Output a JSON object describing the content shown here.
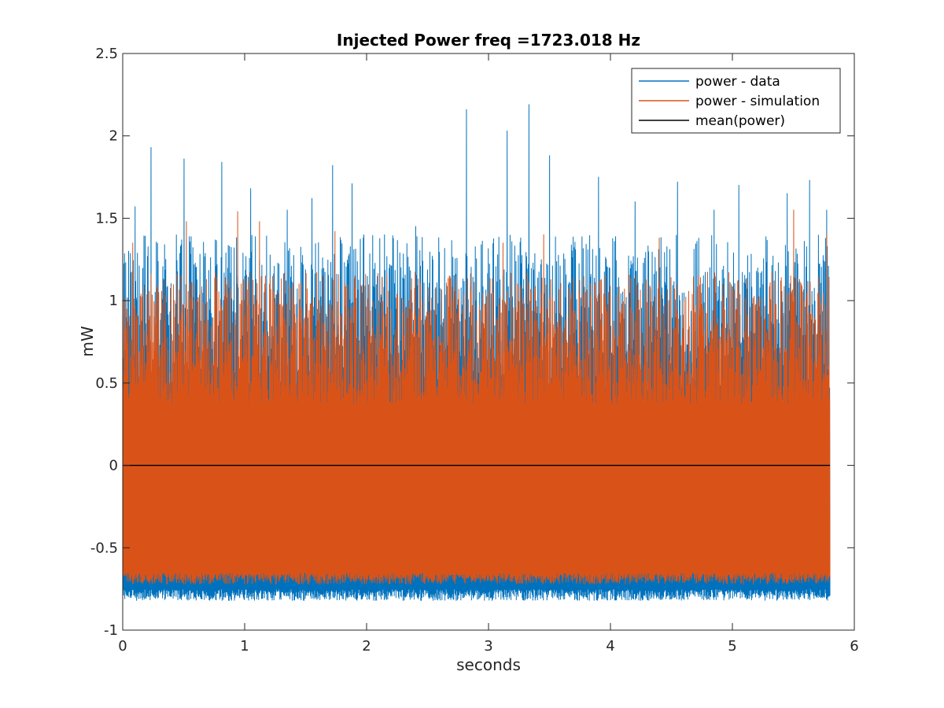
{
  "chart_data": {
    "type": "line",
    "title": "Injected Power freq =1723.018 Hz",
    "xlabel": "seconds",
    "ylabel": "mW",
    "xlim": [
      0,
      6
    ],
    "ylim": [
      -1,
      2.5
    ],
    "xticks": [
      0,
      1,
      2,
      3,
      4,
      5,
      6
    ],
    "yticks": [
      -1,
      -0.5,
      0,
      0.5,
      1,
      1.5,
      2,
      2.5
    ],
    "xtick_labels": [
      "0",
      "1",
      "2",
      "3",
      "4",
      "5",
      "6"
    ],
    "ytick_labels": [
      "-1",
      "-0.5",
      "0",
      "0.5",
      "1",
      "1.5",
      "2",
      "2.5"
    ],
    "grid": false,
    "legend_position": "top-right",
    "x_end": 5.8,
    "series": [
      {
        "name": "power - data",
        "color": "#0072BD",
        "envelope": {
          "min_approx": -0.82,
          "typical_max": 1.25,
          "typical_min": -0.75
        },
        "peaks": [
          {
            "x": 0.0,
            "y": 1.75
          },
          {
            "x": 0.1,
            "y": 1.57
          },
          {
            "x": 0.23,
            "y": 1.93
          },
          {
            "x": 0.5,
            "y": 1.86
          },
          {
            "x": 0.81,
            "y": 1.84
          },
          {
            "x": 1.05,
            "y": 1.68
          },
          {
            "x": 1.35,
            "y": 1.55
          },
          {
            "x": 1.55,
            "y": 1.62
          },
          {
            "x": 1.72,
            "y": 1.82
          },
          {
            "x": 1.88,
            "y": 1.71
          },
          {
            "x": 2.4,
            "y": 1.45
          },
          {
            "x": 2.82,
            "y": 2.16
          },
          {
            "x": 3.15,
            "y": 2.03
          },
          {
            "x": 3.33,
            "y": 2.19
          },
          {
            "x": 3.5,
            "y": 1.88
          },
          {
            "x": 3.9,
            "y": 1.75
          },
          {
            "x": 4.2,
            "y": 1.6
          },
          {
            "x": 4.55,
            "y": 1.72
          },
          {
            "x": 4.85,
            "y": 1.55
          },
          {
            "x": 5.05,
            "y": 1.7
          },
          {
            "x": 5.45,
            "y": 1.65
          },
          {
            "x": 5.63,
            "y": 1.73
          },
          {
            "x": 5.77,
            "y": 1.55
          }
        ]
      },
      {
        "name": "power - simulation",
        "color": "#D95319",
        "envelope": {
          "min_approx": -0.72,
          "typical_max": 1.05,
          "typical_min": -0.65
        },
        "peaks": [
          {
            "x": 0.08,
            "y": 1.35
          },
          {
            "x": 0.52,
            "y": 1.48
          },
          {
            "x": 0.94,
            "y": 1.54
          },
          {
            "x": 1.12,
            "y": 1.48
          },
          {
            "x": 1.74,
            "y": 1.42
          },
          {
            "x": 3.12,
            "y": 1.35
          },
          {
            "x": 3.45,
            "y": 1.4
          },
          {
            "x": 4.4,
            "y": 1.38
          },
          {
            "x": 5.5,
            "y": 1.55
          },
          {
            "x": 5.77,
            "y": 1.4
          }
        ]
      },
      {
        "name": "mean(power)",
        "color": "#000000",
        "x": [
          0,
          6
        ],
        "y": [
          0,
          0
        ]
      }
    ]
  }
}
